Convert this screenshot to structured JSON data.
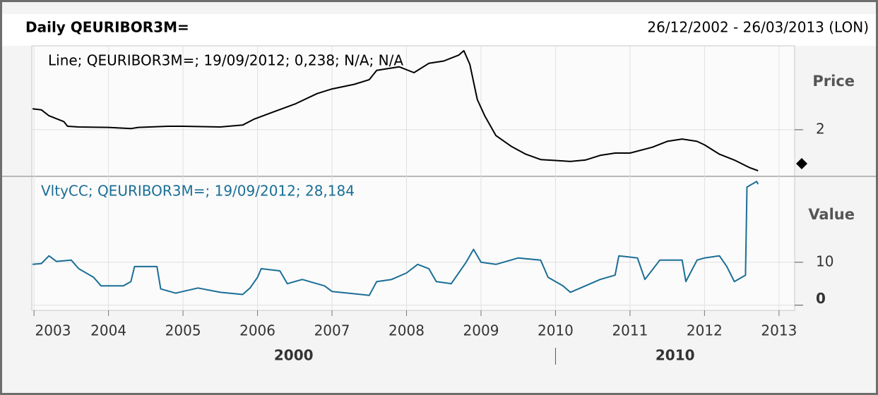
{
  "header": {
    "title": "Daily QEURIBOR3M=",
    "range": "26/12/2002 - 26/03/2013 (LON)"
  },
  "x_axis": {
    "xlim": [
      2002.97,
      2013.21
    ],
    "xticks": [
      2003,
      2004,
      2005,
      2006,
      2007,
      2008,
      2009,
      2010,
      2011,
      2012,
      2013
    ],
    "decades": [
      2000,
      2010
    ]
  },
  "chart_data": [
    {
      "type": "line",
      "legend": "Line; QEURIBOR3M=; 19/09/2012; 0,238; N/A; N/A",
      "y_label": "Price",
      "color": "#000000",
      "ylim": [
        0,
        5.6
      ],
      "yticks": [
        2
      ],
      "x": [
        2002.98,
        2003.1,
        2003.2,
        2003.4,
        2003.45,
        2003.6,
        2004.0,
        2004.3,
        2004.4,
        2004.8,
        2005.0,
        2005.5,
        2005.8,
        2005.95,
        2006.2,
        2006.5,
        2006.8,
        2007.0,
        2007.3,
        2007.5,
        2007.6,
        2007.9,
        2008.1,
        2008.3,
        2008.5,
        2008.7,
        2008.77,
        2008.85,
        2008.95,
        2009.05,
        2009.2,
        2009.4,
        2009.6,
        2009.8,
        2010.0,
        2010.2,
        2010.4,
        2010.6,
        2010.8,
        2011.0,
        2011.3,
        2011.5,
        2011.7,
        2011.9,
        2012.0,
        2012.2,
        2012.4,
        2012.6,
        2012.72
      ],
      "values": [
        2.9,
        2.85,
        2.6,
        2.35,
        2.15,
        2.12,
        2.1,
        2.05,
        2.1,
        2.15,
        2.15,
        2.12,
        2.2,
        2.45,
        2.75,
        3.1,
        3.55,
        3.75,
        3.95,
        4.15,
        4.55,
        4.7,
        4.45,
        4.85,
        4.95,
        5.2,
        5.39,
        4.8,
        3.3,
        2.6,
        1.75,
        1.3,
        0.95,
        0.72,
        0.68,
        0.64,
        0.7,
        0.9,
        1.0,
        1.0,
        1.25,
        1.5,
        1.6,
        1.5,
        1.35,
        0.95,
        0.7,
        0.38,
        0.238
      ]
    },
    {
      "type": "line",
      "legend": "VltyCC; QEURIBOR3M=; 19/09/2012; 28,184",
      "y_label": "Value",
      "color": "#1a6e96",
      "ylim": [
        -1.2,
        30
      ],
      "yticks": [
        0,
        10
      ],
      "x": [
        2002.98,
        2003.1,
        2003.2,
        2003.3,
        2003.5,
        2003.6,
        2003.8,
        2003.9,
        2004.2,
        2004.3,
        2004.35,
        2004.65,
        2004.7,
        2004.9,
        2005.0,
        2005.2,
        2005.5,
        2005.8,
        2005.9,
        2006.0,
        2006.05,
        2006.3,
        2006.4,
        2006.6,
        2006.9,
        2007.0,
        2007.5,
        2007.6,
        2007.8,
        2008.0,
        2008.15,
        2008.3,
        2008.4,
        2008.6,
        2008.8,
        2008.9,
        2009.0,
        2009.2,
        2009.3,
        2009.5,
        2009.8,
        2009.9,
        2010.1,
        2010.2,
        2010.4,
        2010.6,
        2010.8,
        2010.85,
        2011.1,
        2011.2,
        2011.4,
        2011.7,
        2011.75,
        2011.9,
        2012.0,
        2012.2,
        2012.3,
        2012.4,
        2012.55,
        2012.57,
        2012.7,
        2012.72
      ],
      "values": [
        9.5,
        9.7,
        11.5,
        10.2,
        10.5,
        8.5,
        6.5,
        4.5,
        4.5,
        5.5,
        9.0,
        9.0,
        3.8,
        2.8,
        3.2,
        4.0,
        3.0,
        2.5,
        4.0,
        6.5,
        8.5,
        8.0,
        5.0,
        6.0,
        4.5,
        3.2,
        2.3,
        5.5,
        6.0,
        7.5,
        9.5,
        8.5,
        5.5,
        5.0,
        10.0,
        13.0,
        10.0,
        9.5,
        10.0,
        11.0,
        10.5,
        6.5,
        4.5,
        3.0,
        4.5,
        6.0,
        7.0,
        11.5,
        11.0,
        6.0,
        10.5,
        10.5,
        5.5,
        10.5,
        11.0,
        11.5,
        9.0,
        5.5,
        7.0,
        27.5,
        28.8,
        28.184
      ]
    }
  ]
}
